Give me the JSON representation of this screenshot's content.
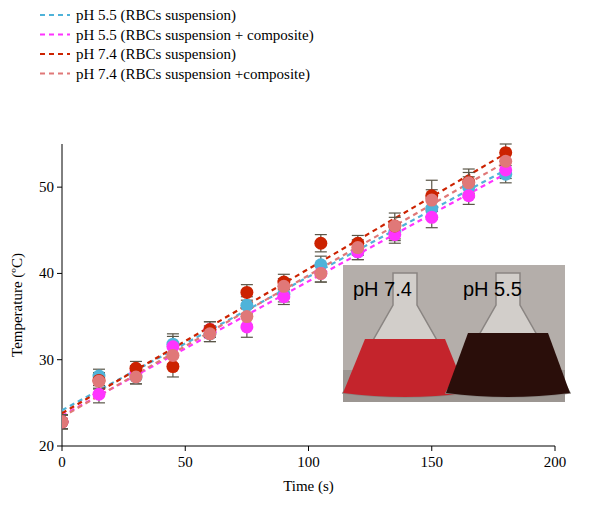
{
  "chart_data": {
    "type": "scatter",
    "x_label": "Time (s)",
    "y_label": "Temperature (ºC)",
    "x": [
      0,
      15,
      30,
      45,
      60,
      75,
      90,
      105,
      120,
      135,
      150,
      165,
      180
    ],
    "xlim": [
      0,
      200
    ],
    "xticks": [
      0,
      50,
      100,
      150,
      200
    ],
    "ylim": [
      20,
      55
    ],
    "yticks": [
      20,
      30,
      40,
      50
    ],
    "legend": "top",
    "grid": false,
    "annotations": [
      "pH 7.4",
      "pH 5.5"
    ],
    "series": [
      {
        "name": "pH 5.5 (RBCs suspension)",
        "color": "#4fb3d9",
        "marker": "circle",
        "line_style": "dashed",
        "values": [
          22.8,
          28.1,
          28.0,
          31.8,
          33.0,
          36.3,
          37.6,
          41.0,
          42.5,
          44.8,
          47.5,
          50.0,
          51.5
        ],
        "errors": [
          0.8,
          0.8,
          0.8,
          1.2,
          0.9,
          1.0,
          0.9,
          1.0,
          0.9,
          1.0,
          1.2,
          1.2,
          1.0
        ]
      },
      {
        "name": "pH 5.5 (RBCs suspension + composite)",
        "color": "#ff33ff",
        "marker": "circle",
        "line_style": "dashed",
        "values": [
          22.8,
          26.0,
          28.5,
          31.5,
          33.5,
          33.8,
          37.3,
          40.0,
          42.5,
          44.5,
          46.5,
          49.0,
          52.0
        ],
        "errors": [
          0.8,
          1.0,
          0.8,
          1.2,
          0.9,
          1.2,
          0.9,
          1.0,
          0.9,
          1.0,
          1.2,
          1.0,
          1.0
        ]
      },
      {
        "name": "pH 7.4 (RBCs suspension)",
        "color": "#cc2200",
        "marker": "circle",
        "line_style": "dashed",
        "values": [
          22.8,
          27.6,
          29.0,
          29.2,
          33.5,
          37.8,
          39.0,
          43.5,
          43.5,
          45.5,
          49.0,
          50.6,
          54.0
        ],
        "errors": [
          0.8,
          0.9,
          0.8,
          1.2,
          0.9,
          0.9,
          0.9,
          1.0,
          0.9,
          1.5,
          1.8,
          1.5,
          1.0
        ]
      },
      {
        "name": "pH 7.4 (RBCs suspension +composite)",
        "color": "#e07878",
        "marker": "circle",
        "line_style": "dashed",
        "values": [
          22.8,
          27.5,
          28.0,
          30.5,
          33.0,
          35.0,
          38.5,
          40.0,
          43.0,
          45.5,
          48.5,
          50.5,
          53.0
        ],
        "errors": [
          0.8,
          0.9,
          0.8,
          1.0,
          0.9,
          1.0,
          0.9,
          1.0,
          0.9,
          1.0,
          1.2,
          1.2,
          1.0
        ]
      }
    ]
  }
}
